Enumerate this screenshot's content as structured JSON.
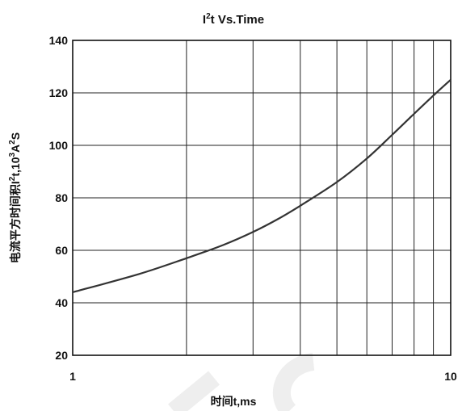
{
  "chart_data": {
    "type": "line",
    "title_main": "I",
    "title_sup": "2",
    "title_rest": "t  Vs.Time",
    "xlabel": "时间t,ms",
    "ylabel_pre": "电流平方时间积I",
    "ylabel_sup1": "2",
    "ylabel_mid": "t,10",
    "ylabel_sup2": "3",
    "ylabel_post": "A",
    "ylabel_sup3": "2",
    "ylabel_end": "S",
    "x_scale": "log",
    "xlim": [
      1,
      10
    ],
    "ylim": [
      20,
      140
    ],
    "x_ticks": [
      1,
      10
    ],
    "x_tick_labels": [
      "1",
      "10"
    ],
    "y_ticks": [
      20,
      40,
      60,
      80,
      100,
      120,
      140
    ],
    "y_tick_labels": [
      "20",
      "40",
      "60",
      "80",
      "100",
      "120",
      "140"
    ],
    "x_grid": [
      2,
      3,
      4,
      5,
      6,
      7,
      8,
      9
    ],
    "grid": true,
    "series": [
      {
        "x": [
          1,
          1.5,
          2,
          2.5,
          3,
          3.5,
          4,
          5,
          6,
          7,
          8,
          9,
          10
        ],
        "y": [
          44,
          51,
          57,
          62,
          67,
          72,
          77,
          86,
          95,
          104,
          112,
          119,
          125
        ]
      }
    ]
  }
}
